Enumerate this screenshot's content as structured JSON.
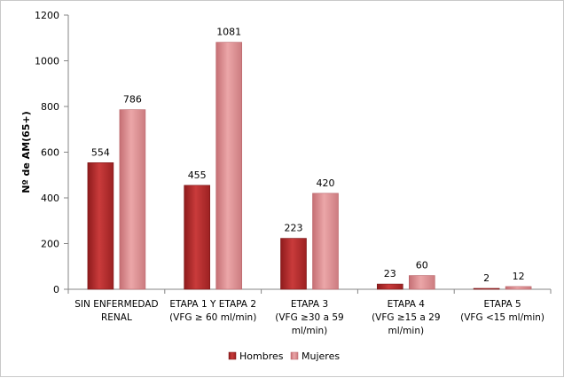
{
  "chart_data": {
    "type": "bar",
    "title": "",
    "xlabel": "",
    "ylabel": "Nº de AM(65+)",
    "ylim": [
      0,
      1200
    ],
    "yticks": [
      0,
      200,
      400,
      600,
      800,
      1000,
      1200
    ],
    "grid": false,
    "legend_position": "bottom",
    "categories": [
      [
        "SIN ENFERMEDAD",
        "RENAL"
      ],
      [
        "ETAPA 1 Y ETAPA 2",
        "(VFG ≥ 60 ml/min)"
      ],
      [
        "ETAPA 3",
        "(VFG ≥30 a 59",
        "ml/min)"
      ],
      [
        "ETAPA 4",
        "(VFG ≥15 a 29",
        "ml/min)"
      ],
      [
        "ETAPA 5",
        "(VFG <15 ml/min)"
      ]
    ],
    "series": [
      {
        "name": "Hombres",
        "values": [
          554,
          455,
          223,
          23,
          2
        ],
        "color": "#b7292a"
      },
      {
        "name": "Mujeres",
        "values": [
          786,
          1081,
          420,
          60,
          12
        ],
        "color": "#d9868a"
      }
    ]
  }
}
